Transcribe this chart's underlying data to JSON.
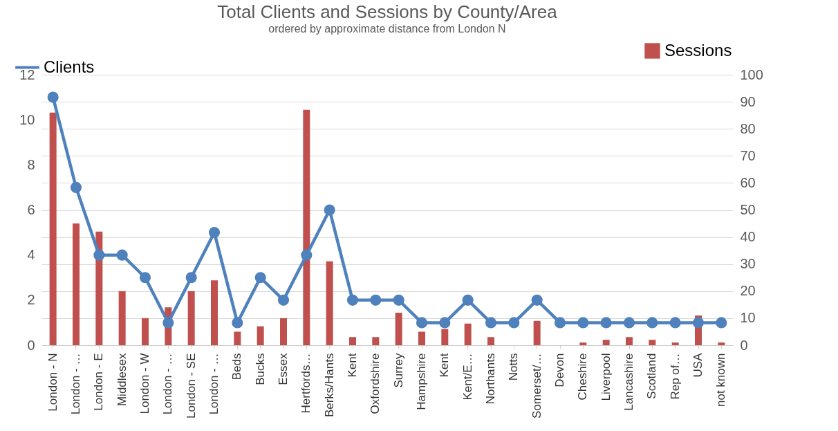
{
  "chart_data": {
    "type": "bar",
    "title": "Total Clients and Sessions by County/Area",
    "subtitle": "ordered by approximate distance from London N",
    "categories": [
      "London - N",
      "London - …",
      "London - E",
      "Middlesex",
      "London - W",
      "London - …",
      "London - SE",
      "London - …",
      "Beds",
      "Bucks",
      "Essex",
      "Hertfords…",
      "Berks/Hants",
      "Kent",
      "Oxfordshire",
      "Surrey",
      "Hampshire",
      "Kent",
      "Kent/E…",
      "Northants",
      "Notts",
      "Somerset/…",
      "Devon",
      "Cheshire",
      "Liverpool",
      "Lancashire",
      "Scotland",
      "Rep of…",
      "USA",
      "not known"
    ],
    "series": [
      {
        "name": "Sessions",
        "axis": "y2",
        "color": "#c0504d",
        "values": [
          86,
          45,
          42,
          20,
          10,
          14,
          20,
          24,
          5,
          7,
          10,
          87,
          31,
          3,
          3,
          12,
          5,
          6,
          8,
          3,
          null,
          9,
          null,
          1,
          2,
          3,
          2,
          1,
          11,
          1
        ]
      },
      {
        "name": "Clients",
        "type": "line",
        "color": "#4f81bd",
        "marker": "circle",
        "values": [
          11,
          7,
          4,
          4,
          3,
          1,
          3,
          5,
          1,
          3,
          2,
          4,
          6,
          2,
          2,
          2,
          1,
          1,
          2,
          1,
          1,
          2,
          1,
          1,
          1,
          1,
          1,
          1,
          1,
          1
        ]
      }
    ],
    "ylim": [
      0,
      12
    ],
    "yticks": [
      0,
      2,
      4,
      6,
      8,
      10,
      12
    ],
    "y2lim": [
      0,
      100
    ],
    "y2ticks": [
      0,
      10,
      20,
      30,
      40,
      50,
      60,
      70,
      80,
      90,
      100
    ],
    "grid": "y",
    "legend": "top"
  }
}
